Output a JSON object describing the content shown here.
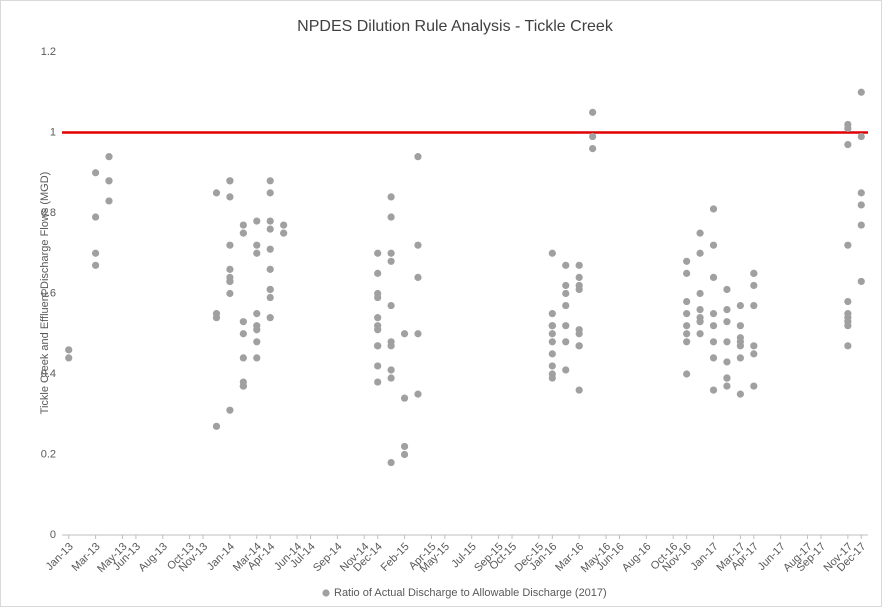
{
  "chart_data": {
    "type": "scatter",
    "title": "NPDES Dilution Rule Analysis - Tickle Creek",
    "y_label": "Tickle Creek and Effluent Discharge Flows (MGD)",
    "ylim": [
      0,
      1.2
    ],
    "yticks": [
      0,
      0.2,
      0.4,
      0.6,
      0.8,
      1,
      1.2
    ],
    "xlim": [
      "2013-01",
      "2017-12"
    ],
    "xticks": [
      {
        "value": "2013-01",
        "label": "Jan-13"
      },
      {
        "value": "2013-03",
        "label": "Mar-13"
      },
      {
        "value": "2013-05",
        "label": "May-13"
      },
      {
        "value": "2013-06",
        "label": "Jun-13"
      },
      {
        "value": "2013-08",
        "label": "Aug-13"
      },
      {
        "value": "2013-10",
        "label": "Oct-13"
      },
      {
        "value": "2013-11",
        "label": "Nov-13"
      },
      {
        "value": "2014-01",
        "label": "Jan-14"
      },
      {
        "value": "2014-03",
        "label": "Mar-14"
      },
      {
        "value": "2014-04",
        "label": "Apr-14"
      },
      {
        "value": "2014-06",
        "label": "Jun-14"
      },
      {
        "value": "2014-07",
        "label": "Jul-14"
      },
      {
        "value": "2014-09",
        "label": "Sep-14"
      },
      {
        "value": "2014-11",
        "label": "Nov-14"
      },
      {
        "value": "2014-12",
        "label": "Dec-14"
      },
      {
        "value": "2015-02",
        "label": "Feb-15"
      },
      {
        "value": "2015-04",
        "label": "Apr-15"
      },
      {
        "value": "2015-05",
        "label": "May-15"
      },
      {
        "value": "2015-07",
        "label": "Jul-15"
      },
      {
        "value": "2015-09",
        "label": "Sep-15"
      },
      {
        "value": "2015-10",
        "label": "Oct-15"
      },
      {
        "value": "2015-12",
        "label": "Dec-15"
      },
      {
        "value": "2016-01",
        "label": "Jan-16"
      },
      {
        "value": "2016-03",
        "label": "Mar-16"
      },
      {
        "value": "2016-05",
        "label": "May-16"
      },
      {
        "value": "2016-06",
        "label": "Jun-16"
      },
      {
        "value": "2016-08",
        "label": "Aug-16"
      },
      {
        "value": "2016-10",
        "label": "Oct-16"
      },
      {
        "value": "2016-11",
        "label": "Nov-16"
      },
      {
        "value": "2017-01",
        "label": "Jan-17"
      },
      {
        "value": "2017-03",
        "label": "Mar-17"
      },
      {
        "value": "2017-04",
        "label": "Apr-17"
      },
      {
        "value": "2017-06",
        "label": "Jun-17"
      },
      {
        "value": "2017-08",
        "label": "Aug-17"
      },
      {
        "value": "2017-09",
        "label": "Sep-17"
      },
      {
        "value": "2017-11",
        "label": "Nov-17"
      },
      {
        "value": "2017-12",
        "label": "Dec-17"
      }
    ],
    "reference_line": {
      "value": 1,
      "color": "#e00000"
    },
    "legend": "bottom",
    "series": [
      {
        "name": "Ratio of Actual Discharge to Allowable Discharge (2017)",
        "color": "#a0a0a0",
        "x": [
          "2013-01",
          "2013-01",
          "2013-03",
          "2013-03",
          "2013-03",
          "2013-03",
          "2013-04",
          "2013-04",
          "2013-04",
          "2013-04",
          "2013-12",
          "2013-12",
          "2013-12",
          "2013-12",
          "2014-01",
          "2014-01",
          "2014-01",
          "2014-01",
          "2014-01",
          "2014-01",
          "2014-01",
          "2014-01",
          "2014-01",
          "2014-01",
          "2014-02",
          "2014-02",
          "2014-02",
          "2014-02",
          "2014-02",
          "2014-02",
          "2014-02",
          "2014-02",
          "2014-03",
          "2014-03",
          "2014-03",
          "2014-03",
          "2014-03",
          "2014-03",
          "2014-03",
          "2014-03",
          "2014-04",
          "2014-04",
          "2014-04",
          "2014-04",
          "2014-04",
          "2014-04",
          "2014-04",
          "2014-04",
          "2014-04",
          "2014-04",
          "2014-05",
          "2014-05",
          "2014-12",
          "2014-12",
          "2014-12",
          "2014-12",
          "2014-12",
          "2014-12",
          "2014-12",
          "2014-12",
          "2014-12",
          "2014-12",
          "2014-12",
          "2015-01",
          "2015-01",
          "2015-01",
          "2015-01",
          "2015-01",
          "2015-01",
          "2015-01",
          "2015-01",
          "2015-01",
          "2015-01",
          "2015-02",
          "2015-02",
          "2015-02",
          "2015-02",
          "2015-03",
          "2015-03",
          "2015-03",
          "2015-03",
          "2015-03",
          "2016-01",
          "2016-01",
          "2016-01",
          "2016-01",
          "2016-01",
          "2016-01",
          "2016-01",
          "2016-01",
          "2016-01",
          "2016-01",
          "2016-02",
          "2016-02",
          "2016-02",
          "2016-02",
          "2016-02",
          "2016-02",
          "2016-02",
          "2016-03",
          "2016-03",
          "2016-03",
          "2016-03",
          "2016-03",
          "2016-03",
          "2016-03",
          "2016-03",
          "2016-03",
          "2016-04",
          "2016-04",
          "2016-04",
          "2016-11",
          "2016-11",
          "2016-11",
          "2016-11",
          "2016-11",
          "2016-11",
          "2016-11",
          "2016-11",
          "2016-12",
          "2016-12",
          "2016-12",
          "2016-12",
          "2016-12",
          "2016-12",
          "2016-12",
          "2017-01",
          "2017-01",
          "2017-01",
          "2017-01",
          "2017-01",
          "2017-01",
          "2017-01",
          "2017-01",
          "2017-02",
          "2017-02",
          "2017-02",
          "2017-02",
          "2017-02",
          "2017-02",
          "2017-02",
          "2017-02",
          "2017-03",
          "2017-03",
          "2017-03",
          "2017-03",
          "2017-03",
          "2017-03",
          "2017-03",
          "2017-04",
          "2017-04",
          "2017-04",
          "2017-04",
          "2017-04",
          "2017-04",
          "2017-04",
          "2017-11",
          "2017-11",
          "2017-11",
          "2017-11",
          "2017-11",
          "2017-11",
          "2017-11",
          "2017-11",
          "2017-11",
          "2017-11",
          "2017-12",
          "2017-12",
          "2017-12",
          "2017-12",
          "2017-12",
          "2017-12"
        ],
        "values": [
          0.46,
          0.44,
          0.79,
          0.7,
          0.67,
          0.9,
          0.83,
          0.88,
          0.88,
          0.94,
          0.27,
          0.55,
          0.54,
          0.85,
          0.72,
          0.63,
          0.64,
          0.88,
          0.88,
          0.6,
          0.84,
          0.31,
          0.66,
          0.63,
          0.77,
          0.75,
          0.38,
          0.5,
          0.44,
          0.37,
          0.53,
          0.37,
          0.72,
          0.78,
          0.44,
          0.48,
          0.52,
          0.51,
          0.7,
          0.55,
          0.88,
          0.85,
          0.59,
          0.61,
          0.76,
          0.66,
          0.78,
          0.71,
          0.54,
          0.61,
          0.77,
          0.75,
          0.54,
          0.52,
          0.51,
          0.47,
          0.47,
          0.6,
          0.38,
          0.42,
          0.65,
          0.7,
          0.59,
          0.18,
          0.41,
          0.57,
          0.48,
          0.47,
          0.39,
          0.7,
          0.68,
          0.84,
          0.79,
          0.5,
          0.34,
          0.22,
          0.2,
          0.35,
          0.72,
          0.64,
          0.5,
          0.94,
          0.52,
          0.7,
          0.45,
          0.4,
          0.39,
          0.48,
          0.55,
          0.5,
          0.52,
          0.42,
          0.6,
          0.67,
          0.48,
          0.52,
          0.41,
          0.57,
          0.62,
          0.64,
          0.61,
          0.62,
          0.36,
          0.5,
          0.47,
          0.47,
          0.67,
          0.51,
          1.05,
          0.99,
          0.96,
          0.52,
          0.68,
          0.65,
          0.55,
          0.5,
          0.4,
          0.48,
          0.58,
          0.5,
          0.56,
          0.6,
          0.53,
          0.54,
          0.7,
          0.75,
          0.52,
          0.64,
          0.55,
          0.48,
          0.44,
          0.36,
          0.72,
          0.81,
          0.53,
          0.39,
          0.39,
          0.43,
          0.37,
          0.48,
          0.56,
          0.61,
          0.57,
          0.52,
          0.48,
          0.44,
          0.47,
          0.49,
          0.35,
          0.47,
          0.45,
          0.37,
          0.65,
          0.65,
          0.57,
          0.62,
          0.97,
          1.02,
          1.01,
          0.72,
          0.58,
          0.47,
          0.53,
          0.52,
          0.55,
          0.54,
          0.85,
          0.82,
          0.99,
          1.1,
          0.77,
          0.63
        ]
      }
    ]
  }
}
